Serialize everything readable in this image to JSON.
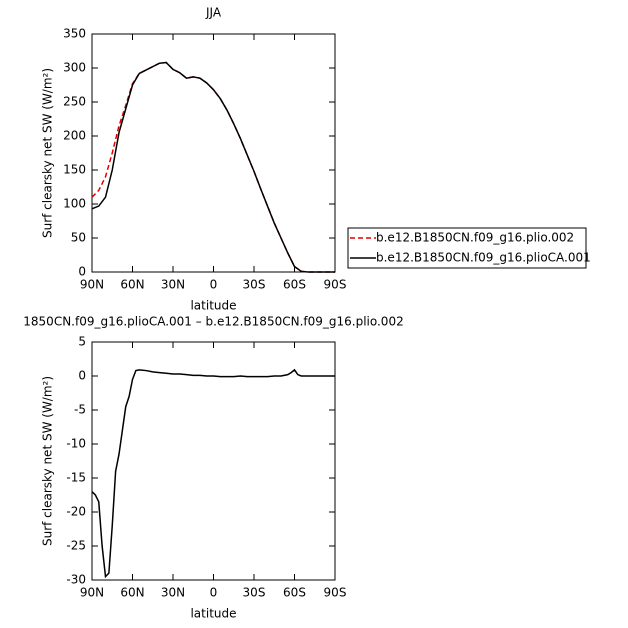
{
  "chart_data": [
    {
      "type": "line",
      "title": "JJA",
      "xlabel": "latitude",
      "ylabel": "Surf clearsky net SW (W/m²)",
      "x": [
        90,
        85,
        80,
        75,
        70,
        65,
        60,
        55,
        50,
        45,
        40,
        35,
        30,
        25,
        20,
        15,
        10,
        5,
        0,
        -5,
        -10,
        -15,
        -20,
        -25,
        -30,
        -35,
        -40,
        -45,
        -50,
        -55,
        -60,
        -65,
        -70,
        -75,
        -80,
        -85,
        -90
      ],
      "series": [
        {
          "name": "b.e12.B1850CN.f09_g16.plio.002",
          "color": "#e00000",
          "linestyle": "dashed",
          "values": [
            110,
            120,
            140,
            175,
            215,
            245,
            277,
            292,
            297,
            302,
            307,
            308,
            298,
            293,
            285,
            287,
            285,
            278,
            268,
            255,
            238,
            218,
            196,
            172,
            148,
            122,
            97,
            72,
            50,
            28,
            8,
            1,
            0,
            0,
            0,
            0,
            0
          ]
        },
        {
          "name": "b.e12.B1850CN.f09_g16.plioCA.001",
          "color": "#000000",
          "linestyle": "solid",
          "values": [
            93,
            97,
            110,
            150,
            205,
            240,
            275,
            292,
            297,
            302,
            307,
            308,
            298,
            293,
            285,
            287,
            285,
            278,
            268,
            255,
            238,
            218,
            196,
            172,
            148,
            122,
            97,
            72,
            50,
            28,
            8,
            1,
            0,
            0,
            0,
            0,
            0
          ]
        }
      ],
      "xlim": [
        90,
        -90
      ],
      "xticks": [
        {
          "value": 90,
          "label": "90N"
        },
        {
          "value": 60,
          "label": "60N"
        },
        {
          "value": 30,
          "label": "30N"
        },
        0,
        {
          "value": -30,
          "label": "30S"
        },
        {
          "value": -60,
          "label": "60S"
        },
        {
          "value": -90,
          "label": "90S"
        }
      ],
      "ylim": [
        0,
        350
      ],
      "yticks": [
        0,
        50,
        100,
        150,
        200,
        250,
        300,
        350
      ],
      "legend": "right"
    },
    {
      "type": "line",
      "title": "1850CN.f09_g16.plioCA.001 – b.e12.B1850CN.f09_g16.plio.002",
      "xlabel": "latitude",
      "ylabel": "Surf clearsky net SW (W/m²)",
      "x": [
        90,
        87.5,
        85,
        82.5,
        80,
        77.5,
        75,
        72.5,
        70,
        67.5,
        65,
        62.5,
        60,
        57.5,
        55,
        50,
        45,
        40,
        35,
        30,
        25,
        20,
        15,
        10,
        5,
        0,
        -5,
        -10,
        -15,
        -20,
        -25,
        -30,
        -35,
        -40,
        -45,
        -50,
        -55,
        -57.5,
        -60,
        -62.5,
        -65,
        -70,
        -75,
        -80,
        -85,
        -90
      ],
      "series": [
        {
          "color": "#000000",
          "linestyle": "solid",
          "values": [
            -17,
            -17.5,
            -18.5,
            -25,
            -29.5,
            -29,
            -22,
            -14,
            -11.5,
            -8,
            -4.5,
            -3,
            -0.5,
            0.8,
            0.9,
            0.8,
            0.6,
            0.5,
            0.4,
            0.3,
            0.3,
            0.2,
            0.1,
            0.1,
            0,
            0,
            -0.1,
            -0.1,
            -0.1,
            0,
            -0.1,
            -0.1,
            -0.1,
            -0.1,
            0,
            0,
            0.2,
            0.5,
            0.9,
            0.2,
            0,
            0,
            0,
            0,
            0,
            0
          ]
        }
      ],
      "xlim": [
        90,
        -90
      ],
      "xticks": [
        {
          "value": 90,
          "label": "90N"
        },
        {
          "value": 60,
          "label": "60N"
        },
        {
          "value": 30,
          "label": "30N"
        },
        0,
        {
          "value": -30,
          "label": "30S"
        },
        {
          "value": -60,
          "label": "60S"
        },
        {
          "value": -90,
          "label": "90S"
        }
      ],
      "ylim": [
        -30,
        5
      ],
      "yticks": [
        5,
        0,
        -5,
        -10,
        -15,
        -20,
        -25,
        -30
      ]
    }
  ]
}
